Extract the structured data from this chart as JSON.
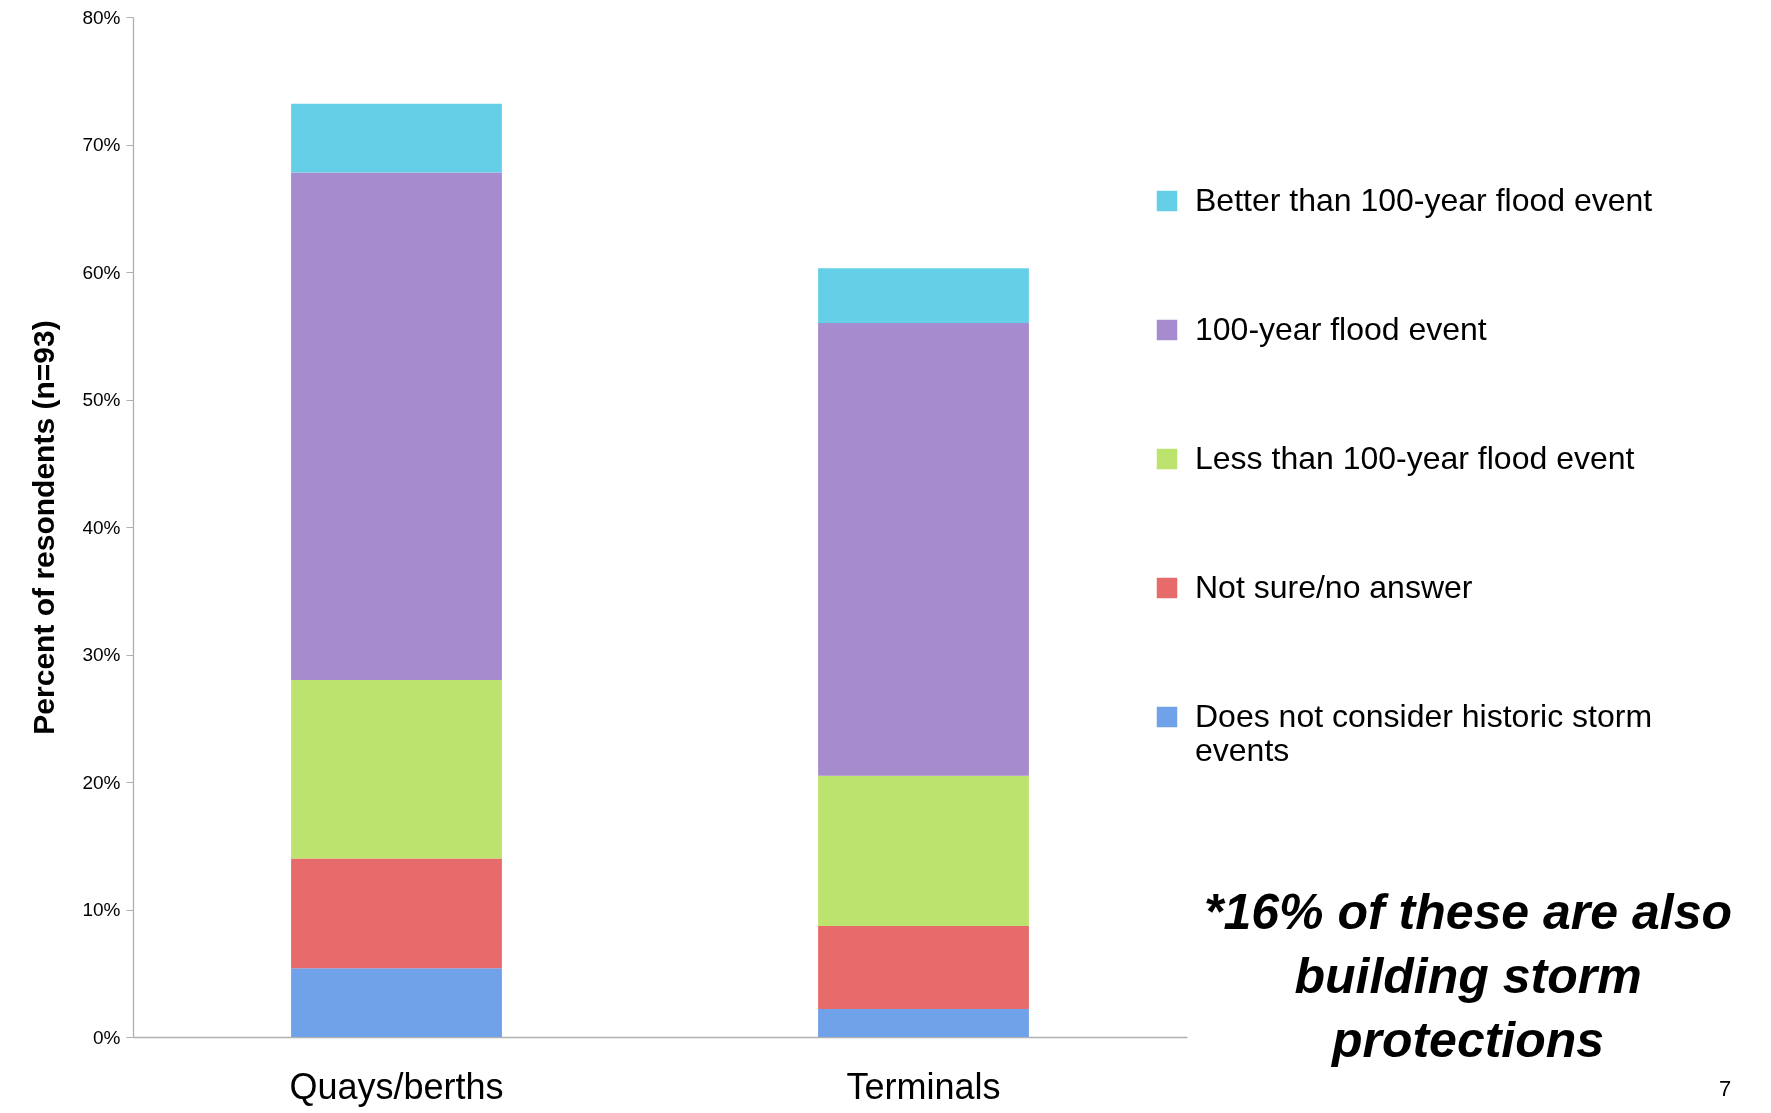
{
  "chart_data": {
    "type": "bar",
    "stacked": true,
    "categories": [
      "Quays/berths",
      "Terminals"
    ],
    "ylabel": "Percent of resondents (n=93)",
    "ylim": [
      0,
      80
    ],
    "yticks": [
      {
        "value": 0,
        "label": "0%"
      },
      {
        "value": 10,
        "label": "10%"
      },
      {
        "value": 20,
        "label": "20%"
      },
      {
        "value": 30,
        "label": "30%"
      },
      {
        "value": 40,
        "label": "40%"
      },
      {
        "value": 50,
        "label": "50%"
      },
      {
        "value": 60,
        "label": "60%"
      },
      {
        "value": 70,
        "label": "70%"
      },
      {
        "value": 80,
        "label": "80%"
      }
    ],
    "series": [
      {
        "name": "Does not consider historic storm events",
        "color": "#6fa2e8",
        "values": [
          5.4,
          2.2
        ]
      },
      {
        "name": "Not sure/no answer",
        "color": "#e86b6b",
        "values": [
          8.6,
          6.5
        ]
      },
      {
        "name": "Less than 100-year flood event",
        "color": "#bde36f",
        "values": [
          14.0,
          11.8
        ]
      },
      {
        "name": "100-year flood event",
        "color": "#a68bcf",
        "values": [
          39.8,
          35.5
        ]
      },
      {
        "name": "Better than 100-year flood event",
        "color": "#66cfe8",
        "values": [
          5.4,
          4.3
        ]
      }
    ],
    "legend": "right",
    "annotations": [
      "*16% of these are also building storm protections",
      "7"
    ]
  }
}
